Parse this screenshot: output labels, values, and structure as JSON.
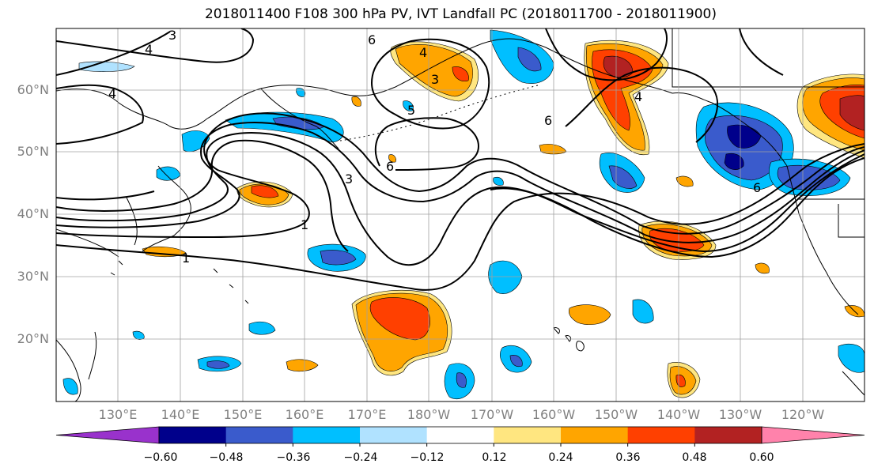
{
  "title": "2018011400 F108 300 hPa PV, IVT Landfall PC (2018011700 - 2018011900)",
  "axes": {
    "lat_ticks": [
      "60°N",
      "50°N",
      "40°N",
      "30°N",
      "20°N"
    ],
    "lon_ticks": [
      "130°E",
      "140°E",
      "150°E",
      "160°E",
      "170°E",
      "180°W",
      "170°W",
      "160°W",
      "150°W",
      "140°W",
      "130°W",
      "120°W"
    ]
  },
  "contour_labels": [
    "3",
    "4",
    "6",
    "4",
    "3",
    "4",
    "5",
    "6",
    "3",
    "1",
    "1",
    "6",
    "4",
    "6"
  ],
  "colorbar": {
    "tick_labels": [
      "−0.60",
      "−0.48",
      "−0.36",
      "−0.24",
      "−0.12",
      "0.12",
      "0.24",
      "0.36",
      "0.48",
      "0.60"
    ],
    "colors": [
      "#9932cc",
      "#00008b",
      "#3a5bcc",
      "#00bfff",
      "#b0e2ff",
      "#ffffff",
      "#ffe680",
      "#ffa500",
      "#ff4000",
      "#b22222",
      "#ff82ab"
    ]
  }
}
